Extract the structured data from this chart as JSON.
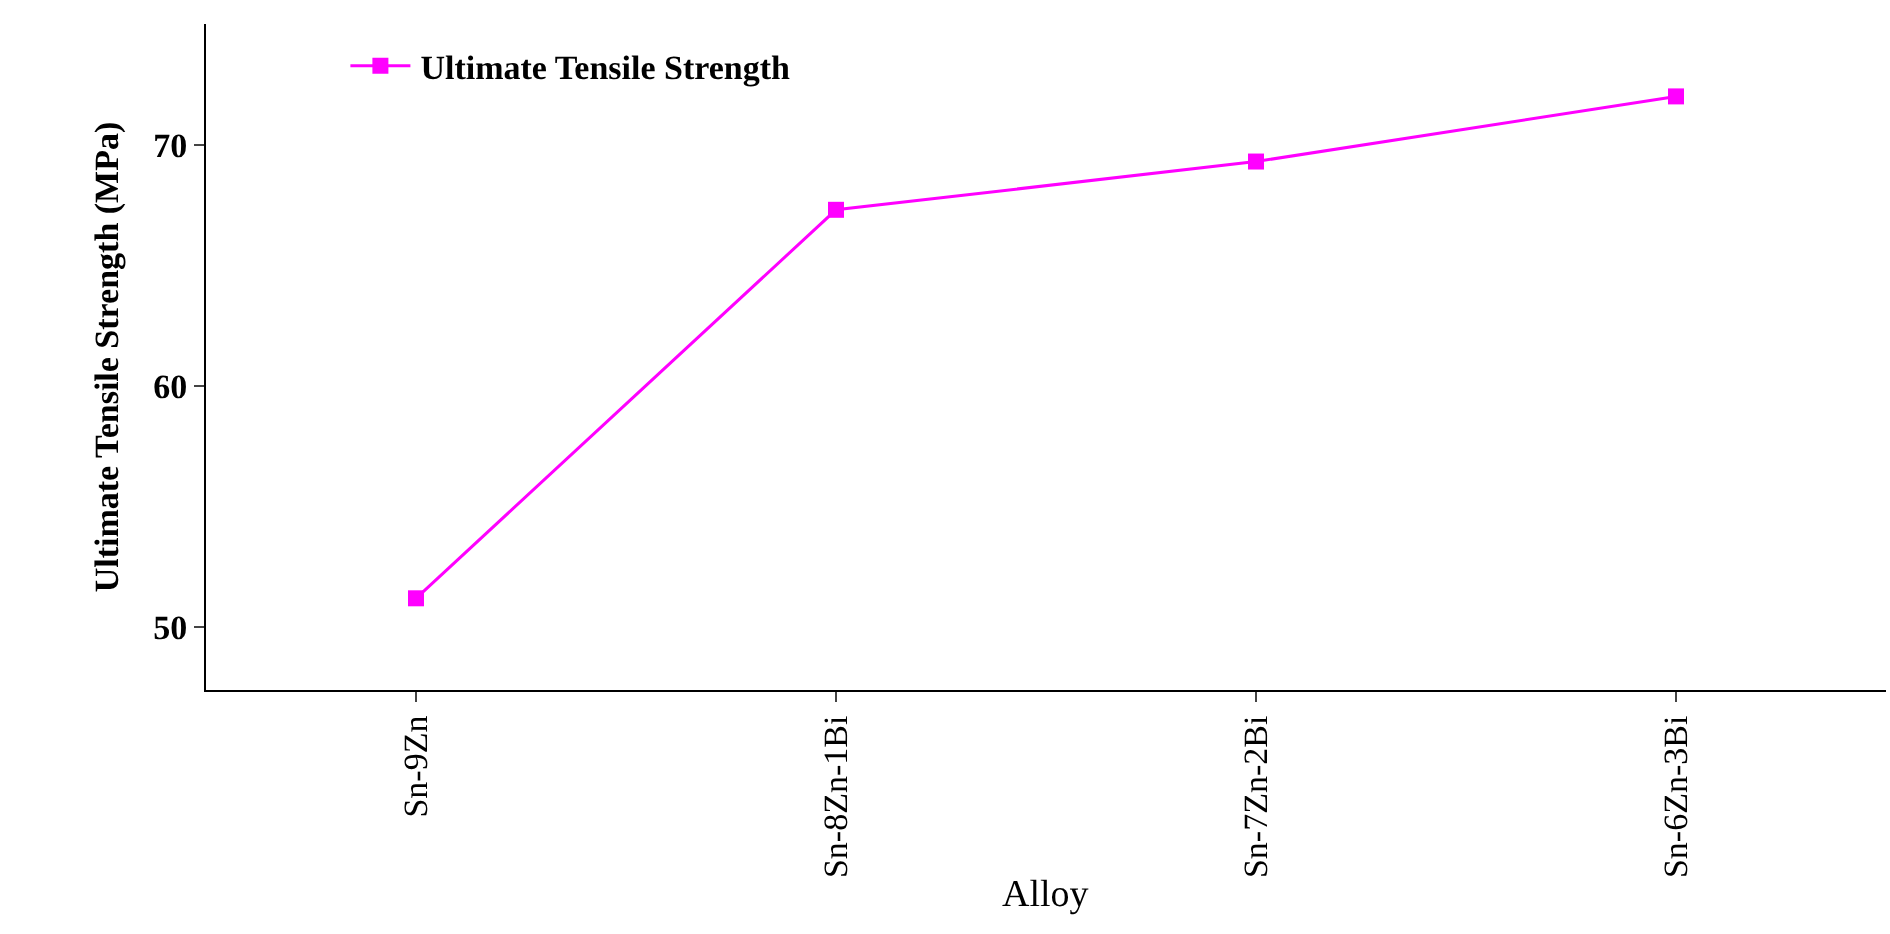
{
  "chart_data": {
    "type": "line",
    "xlabel": "Alloy",
    "ylabel": "Ultimate Tensile Strength (MPa)",
    "categories": [
      "Sn-9Zn",
      "Sn-8Zn-1Bi",
      "Sn-7Zn-2Bi",
      "Sn-6Zn-3Bi"
    ],
    "series": [
      {
        "name": "Ultimate Tensile Strength",
        "color": "#ff00ff",
        "values": [
          51.2,
          67.3,
          69.3,
          72.0
        ]
      }
    ],
    "ylim": [
      47.4,
      75
    ],
    "yticks": [
      50,
      60,
      70
    ],
    "legend": "top left",
    "marker": "square",
    "line_style": "solid"
  }
}
